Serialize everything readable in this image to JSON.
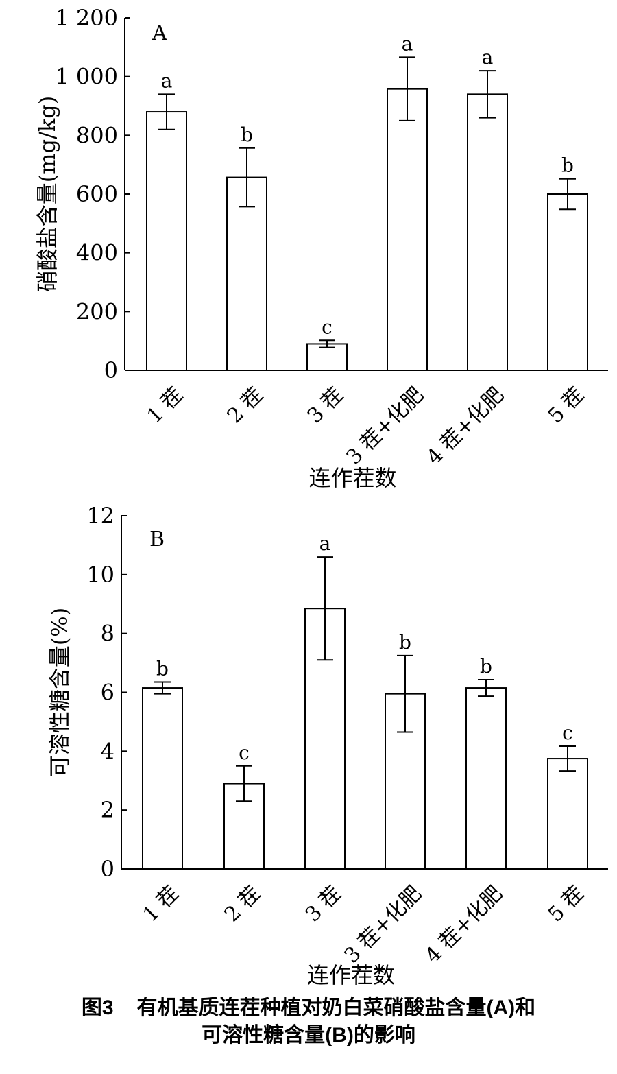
{
  "chart_data": [
    {
      "type": "bar",
      "panel_label": "A",
      "categories": [
        "1 茬",
        "2 茬",
        "3 茬",
        "3 茬+化肥",
        "4 茬+化肥",
        "5 茬"
      ],
      "values": [
        880,
        657,
        90,
        958,
        940,
        600
      ],
      "errors": [
        60,
        100,
        12,
        108,
        80,
        52
      ],
      "significance": [
        "a",
        "b",
        "c",
        "a",
        "a",
        "b"
      ],
      "xlabel": "连作茬数",
      "ylabel": "硝酸盐含量(mg/kg)",
      "ylim": [
        0,
        1200
      ],
      "yticks": [
        0,
        200,
        400,
        600,
        800,
        1000,
        1200
      ],
      "ytick_labels": [
        "0",
        "200",
        "400",
        "600",
        "800",
        "1 000",
        "1 200"
      ],
      "grid": false
    },
    {
      "type": "bar",
      "panel_label": "B",
      "categories": [
        "1 茬",
        "2 茬",
        "3 茬",
        "3 茬+化肥",
        "4 茬+化肥",
        "5 茬"
      ],
      "values": [
        6.15,
        2.9,
        8.85,
        5.95,
        6.15,
        3.75
      ],
      "errors": [
        0.2,
        0.6,
        1.75,
        1.3,
        0.28,
        0.42
      ],
      "significance": [
        "b",
        "c",
        "a",
        "b",
        "b",
        "c"
      ],
      "xlabel": "连作茬数",
      "ylabel": "可溶性糖含量(%)",
      "ylim": [
        0,
        12
      ],
      "yticks": [
        0,
        2,
        4,
        6,
        8,
        10,
        12
      ],
      "ytick_labels": [
        "0",
        "2",
        "4",
        "6",
        "8",
        "10",
        "12"
      ],
      "grid": false
    }
  ],
  "caption": {
    "number": "图3",
    "line1": "有机基质连茬种植对奶白菜硝酸盐含量(A)和",
    "line2": "可溶性糖含量(B)的影响"
  }
}
